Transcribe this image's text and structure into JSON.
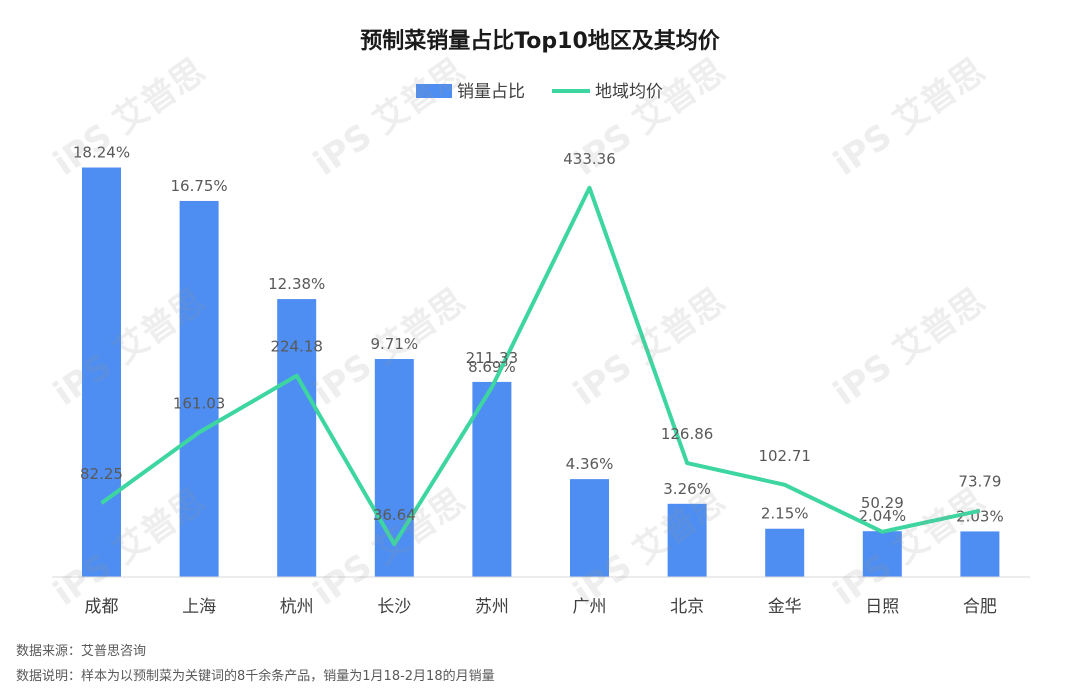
{
  "watermark": "iPS 艾普思",
  "footer": {
    "source": "数据来源：艾普思咨询",
    "description": "数据说明：样本为以预制菜为关键词的8千余条产品，销量为1月18-2月18的月销量"
  },
  "chart_data": {
    "type": "bar+line",
    "title": "预制菜销量占比Top10地区及其均价",
    "categories": [
      "成都",
      "上海",
      "杭州",
      "长沙",
      "苏州",
      "广州",
      "北京",
      "金华",
      "日照",
      "合肥"
    ],
    "series": [
      {
        "name": "销量占比",
        "type": "bar",
        "color": "#4e8ef2",
        "values": [
          18.24,
          16.75,
          12.38,
          9.71,
          8.69,
          4.36,
          3.26,
          2.15,
          2.04,
          2.03
        ],
        "labels": [
          "18.24%",
          "16.75%",
          "12.38%",
          "9.71%",
          "8.69%",
          "4.36%",
          "3.26%",
          "2.15%",
          "2.04%",
          "2.03%"
        ]
      },
      {
        "name": "地域均价",
        "type": "line",
        "color": "#3dd6a0",
        "values": [
          82.25,
          161.03,
          224.18,
          36.64,
          211.33,
          433.36,
          126.86,
          102.71,
          50.29,
          73.79
        ],
        "labels": [
          "82.25",
          "161.03",
          "224.18",
          "36.64",
          "211.33",
          "433.36",
          "126.86",
          "102.71",
          "50.29",
          "73.79"
        ]
      }
    ],
    "y_left_range": [
      0,
      20
    ],
    "y_right_range": [
      0,
      500
    ],
    "legend": "top-center",
    "grid": false
  }
}
